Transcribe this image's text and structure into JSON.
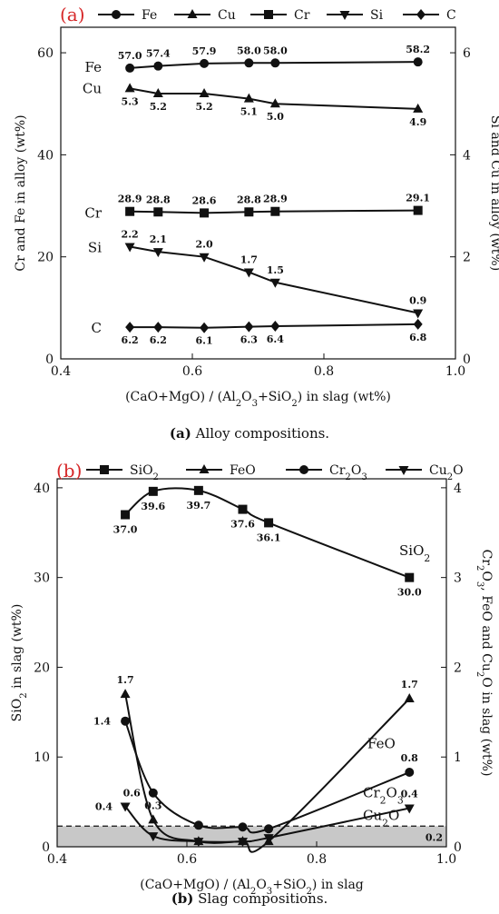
{
  "captions": {
    "a_bold": "(a)",
    "a_text": " Alloy compositions.",
    "b_bold": "(b)",
    "b_text": " Slag compositions."
  },
  "chart_data": [
    {
      "panel_label": "(a)",
      "type": "line",
      "xlabel": "(CaO+MgO) / (Al2O3+SiO2) in slag (wt%)",
      "ylabel_left": "Cr and Fe in alloy (wt%)",
      "ylabel_right": "Si and Cu in alloy (wt%)",
      "xlim": [
        0.4,
        1.0
      ],
      "ylim_left": [
        0,
        65
      ],
      "ylim_right": [
        0,
        6.5
      ],
      "xticks": [
        "0.4",
        "0.6",
        "0.8",
        "1.0"
      ],
      "yticks_left": [
        "0",
        "20",
        "40",
        "60"
      ],
      "yticks_right": [
        "0",
        "2",
        "4",
        "6"
      ],
      "legend": [
        "Fe",
        "Cu",
        "Cr",
        "Si",
        "C"
      ],
      "legend_position": "top",
      "x": [
        0.505,
        0.548,
        0.618,
        0.686,
        0.726,
        0.943
      ],
      "series": [
        {
          "name": "Fe",
          "axis": "left",
          "marker": "circle",
          "values": [
            57.0,
            57.4,
            57.9,
            58.0,
            58.0,
            58.2
          ],
          "labels": [
            "57.0",
            "57.4",
            "57.9",
            "58.0",
            "58.0",
            "58.2"
          ],
          "label_pos": "above"
        },
        {
          "name": "Cu",
          "axis": "right",
          "marker": "triangle-up",
          "values": [
            5.3,
            5.2,
            5.2,
            5.1,
            5.0,
            4.9
          ],
          "labels": [
            "5.3",
            "5.2",
            "5.2",
            "5.1",
            "5.0",
            "4.9"
          ],
          "label_pos": "below"
        },
        {
          "name": "Cr",
          "axis": "left",
          "marker": "square",
          "values": [
            28.9,
            28.8,
            28.6,
            28.8,
            28.9,
            29.1
          ],
          "labels": [
            "28.9",
            "28.8",
            "28.6",
            "28.8",
            "28.9",
            "29.1"
          ],
          "label_pos": "above"
        },
        {
          "name": "Si",
          "axis": "right",
          "marker": "triangle-down",
          "values": [
            2.2,
            2.1,
            2.0,
            1.7,
            1.5,
            0.9
          ],
          "labels": [
            "2.2",
            "2.1",
            "2.0",
            "1.7",
            "1.5",
            "0.9"
          ],
          "label_pos": "above"
        },
        {
          "name": "C",
          "axis": "left",
          "marker": "diamond",
          "values": [
            6.2,
            6.2,
            6.1,
            6.3,
            6.4,
            6.8
          ],
          "labels": [
            "6.2",
            "6.2",
            "6.1",
            "6.3",
            "6.4",
            "6.8"
          ],
          "label_pos": "below"
        }
      ]
    },
    {
      "panel_label": "(b)",
      "type": "line",
      "xlabel": "(CaO+MgO) / (Al2O3+SiO2) in slag",
      "ylabel_left": "SiO2 in slag (wt%)",
      "ylabel_right": "Cr2O3, FeO and Cu2O in slag (wt%)",
      "xlim": [
        0.4,
        1.0
      ],
      "ylim_left": [
        0,
        41
      ],
      "ylim_right": [
        0,
        4.1
      ],
      "xticks": [
        "0.4",
        "0.6",
        "0.8",
        "1.0"
      ],
      "yticks_left": [
        "0",
        "10",
        "20",
        "30",
        "40"
      ],
      "yticks_right": [
        "0",
        "1",
        "2",
        "3",
        "4"
      ],
      "legend": [
        "SiO2",
        "FeO",
        "Cr2O3",
        "Cu2O"
      ],
      "legend_position": "top",
      "threshold": {
        "value": 0.23,
        "axis": "right",
        "label": "0.2"
      },
      "x": [
        0.505,
        0.548,
        0.618,
        0.686,
        0.726,
        0.943
      ],
      "series": [
        {
          "name": "SiO2",
          "axis": "left",
          "marker": "square",
          "values": [
            37.0,
            39.6,
            39.7,
            37.6,
            36.1,
            30.0
          ],
          "labels": [
            "37.0",
            "39.6",
            "39.7",
            "37.6",
            "36.1",
            "30.0"
          ]
        },
        {
          "name": "FeO",
          "axis": "right",
          "marker": "triangle-up",
          "values": [
            1.7,
            0.3,
            0.06,
            0.06,
            0.06,
            1.65
          ],
          "labels": [
            "1.7",
            "0.3",
            "",
            "",
            "",
            "1.7"
          ]
        },
        {
          "name": "Cr2O3",
          "axis": "right",
          "marker": "circle",
          "values": [
            1.4,
            0.6,
            0.24,
            0.22,
            0.2,
            0.83
          ],
          "labels": [
            "1.4",
            "0.6",
            "",
            "",
            "",
            "0.8"
          ]
        },
        {
          "name": "Cu2O",
          "axis": "right",
          "marker": "triangle-down",
          "values": [
            0.45,
            0.12,
            0.06,
            0.06,
            0.1,
            0.43
          ],
          "labels": [
            "0.4",
            "",
            "",
            "",
            "",
            "0.4"
          ]
        }
      ],
      "curve_labels": [
        "SiO2",
        "FeO",
        "Cr2O3",
        "Cu2O"
      ]
    }
  ]
}
